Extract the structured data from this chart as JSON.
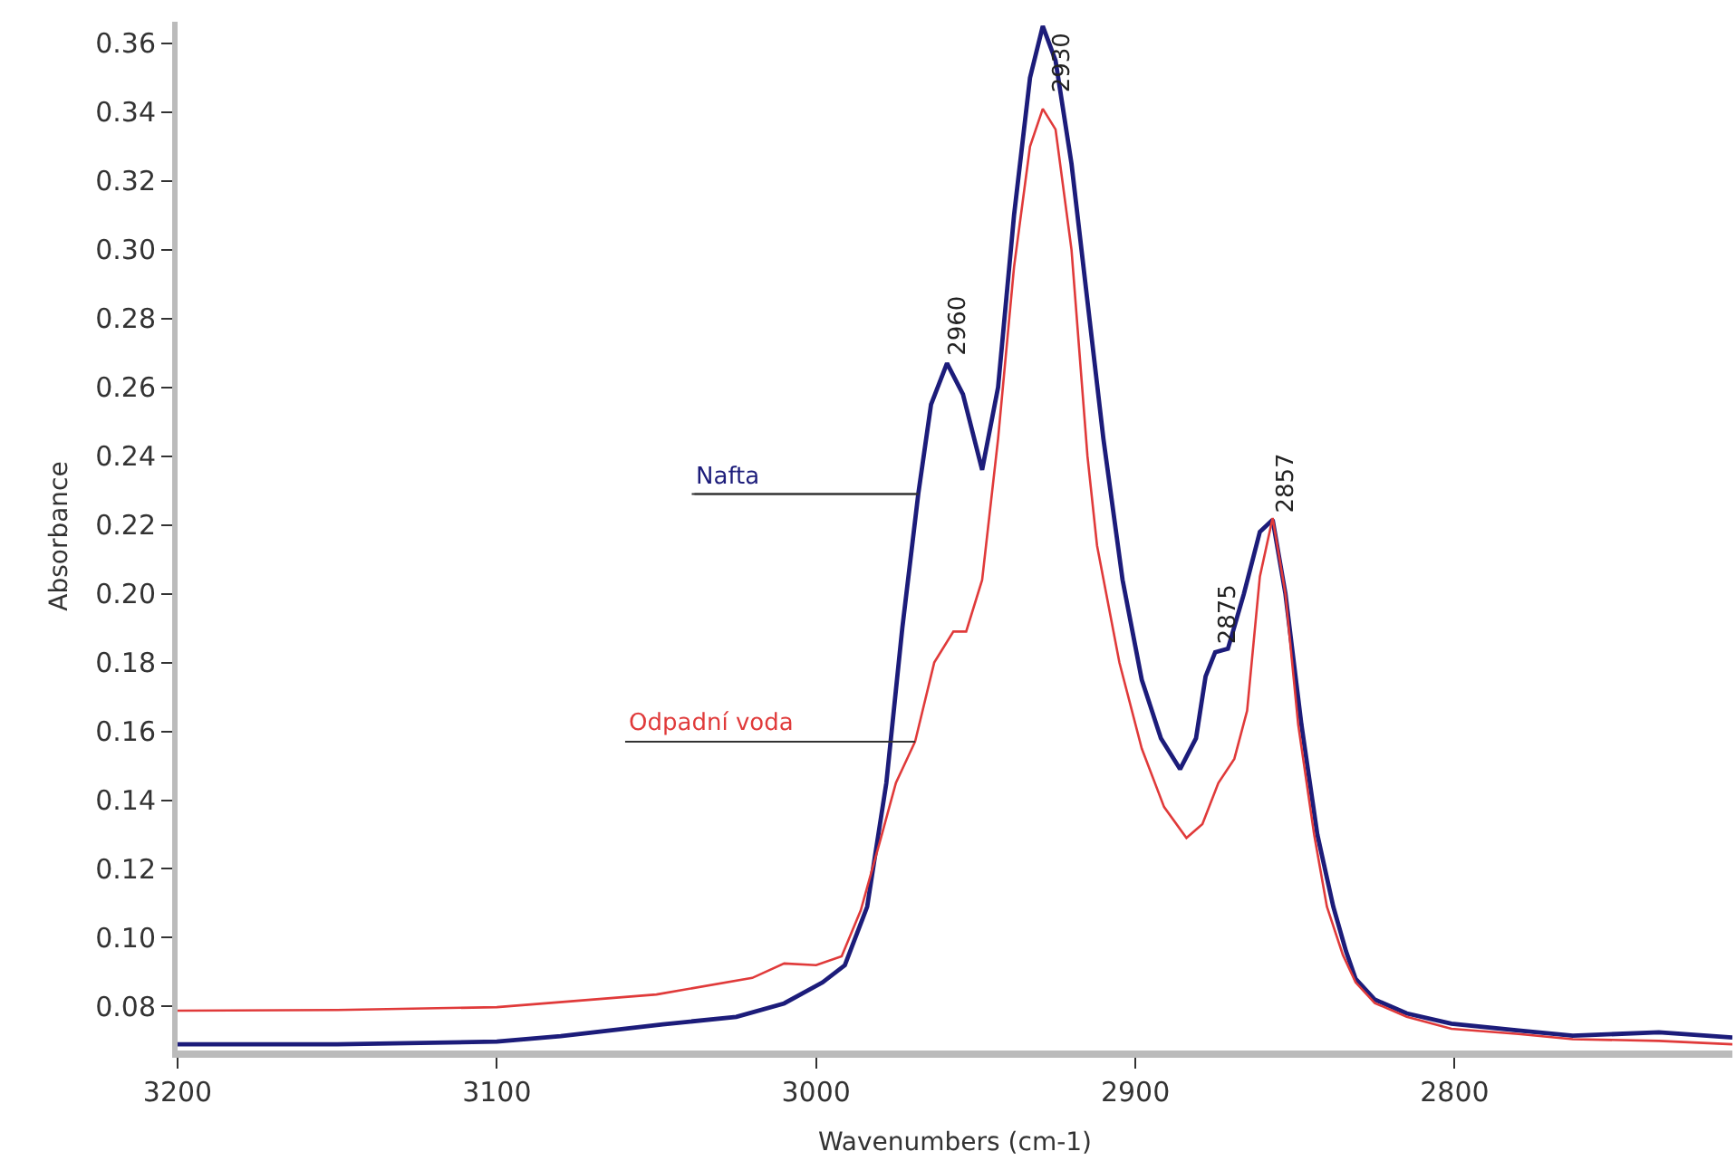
{
  "chart_data": {
    "type": "line",
    "xlabel": "Wavenumbers (cm-1)",
    "ylabel": "Absorbance",
    "xlim": [
      3200,
      2713
    ],
    "ylim": [
      0.0672,
      0.3663
    ],
    "xticks": [
      3200,
      3100,
      3000,
      2900,
      2800
    ],
    "yticks": [
      0.08,
      {
        "value": 0.1,
        "label": "0.10"
      },
      0.12,
      0.14,
      0.16,
      0.18,
      {
        "value": 0.2,
        "label": "0.20"
      },
      0.22,
      0.24,
      0.26,
      0.28,
      {
        "value": 0.3,
        "label": "0.30"
      },
      0.32,
      0.34,
      0.36
    ],
    "legend": false,
    "marker": "none",
    "line_style": "solid",
    "series": [
      {
        "name": "Nafta",
        "color": "#1c1c7a",
        "x": [
          3200,
          3150,
          3100,
          3080,
          3048,
          3025,
          3010,
          2998,
          2991,
          2984,
          2978,
          2973,
          2968,
          2964,
          2959,
          2954,
          2948,
          2943,
          2938,
          2933,
          2929,
          2925,
          2920,
          2915,
          2910,
          2904,
          2898,
          2892,
          2886,
          2881,
          2878,
          2875,
          2871,
          2866,
          2861,
          2857,
          2853,
          2848,
          2843,
          2838,
          2834,
          2831,
          2825,
          2815,
          2801,
          2780,
          2763,
          2736,
          2713
        ],
        "values": [
          0.069,
          0.069,
          0.0698,
          0.0714,
          0.0748,
          0.077,
          0.0809,
          0.087,
          0.092,
          0.109,
          0.145,
          0.19,
          0.229,
          0.255,
          0.267,
          0.258,
          0.236,
          0.26,
          0.31,
          0.35,
          0.365,
          0.355,
          0.325,
          0.285,
          0.245,
          0.204,
          0.175,
          0.158,
          0.149,
          0.158,
          0.176,
          0.183,
          0.184,
          0.2,
          0.218,
          0.2215,
          0.2,
          0.162,
          0.13,
          0.109,
          0.096,
          0.088,
          0.082,
          0.078,
          0.075,
          0.073,
          0.0715,
          0.0725,
          0.071
        ]
      },
      {
        "name": "Odpadní voda",
        "color": "#e03a3a",
        "x": [
          3200,
          3150,
          3100,
          3050,
          3020,
          3010,
          3000,
          2992,
          2986,
          2980,
          2975,
          2969,
          2963,
          2957,
          2953,
          2948,
          2943,
          2938,
          2933,
          2929,
          2925,
          2920,
          2915,
          2912,
          2905,
          2898,
          2891,
          2884,
          2879,
          2874,
          2869,
          2865,
          2861,
          2857,
          2853,
          2849,
          2844,
          2840,
          2835,
          2831,
          2825,
          2815,
          2801,
          2780,
          2763,
          2736,
          2713
        ],
        "values": [
          0.0788,
          0.079,
          0.0798,
          0.0835,
          0.0883,
          0.0925,
          0.092,
          0.0946,
          0.108,
          0.128,
          0.145,
          0.157,
          0.18,
          0.189,
          0.189,
          0.204,
          0.245,
          0.295,
          0.33,
          0.341,
          0.335,
          0.3,
          0.24,
          0.214,
          0.18,
          0.155,
          0.138,
          0.129,
          0.133,
          0.145,
          0.152,
          0.166,
          0.205,
          0.222,
          0.2,
          0.162,
          0.13,
          0.109,
          0.095,
          0.087,
          0.081,
          0.077,
          0.0735,
          0.072,
          0.0705,
          0.07,
          0.069
        ]
      }
    ],
    "annotations": [
      {
        "text": "2960",
        "x": 2960,
        "y": 0.267
      },
      {
        "text": "2930",
        "x": 2930,
        "y": 0.365
      },
      {
        "text": "2875",
        "x": 2875,
        "y": 0.183
      },
      {
        "text": "2857",
        "x": 2857,
        "y": 0.2215
      }
    ]
  }
}
